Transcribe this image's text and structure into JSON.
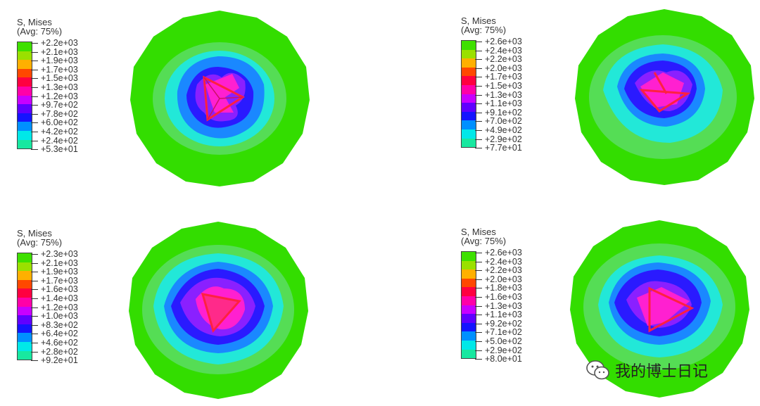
{
  "panels": [
    {
      "title_line1": "S, Mises",
      "title_line2": "(Avg: 75%)",
      "labels": [
        "+2.2e+03",
        "+2.1e+03",
        "+1.9e+03",
        "+1.7e+03",
        "+1.5e+03",
        "+1.3e+03",
        "+1.2e+03",
        "+9.7e+02",
        "+7.8e+02",
        "+6.0e+02",
        "+4.2e+02",
        "+2.4e+02",
        "+5.3e+01"
      ]
    },
    {
      "title_line1": "S, Mises",
      "title_line2": "(Avg: 75%)",
      "labels": [
        "+2.6e+03",
        "+2.4e+03",
        "+2.2e+03",
        "+2.0e+03",
        "+1.7e+03",
        "+1.5e+03",
        "+1.3e+03",
        "+1.1e+03",
        "+9.1e+02",
        "+7.0e+02",
        "+4.9e+02",
        "+2.9e+02",
        "+7.7e+01"
      ]
    },
    {
      "title_line1": "S, Mises",
      "title_line2": "(Avg: 75%)",
      "labels": [
        "+2.3e+03",
        "+2.1e+03",
        "+1.9e+03",
        "+1.7e+03",
        "+1.6e+03",
        "+1.4e+03",
        "+1.2e+03",
        "+1.0e+03",
        "+8.3e+02",
        "+6.4e+02",
        "+4.6e+02",
        "+2.8e+02",
        "+9.2e+01"
      ]
    },
    {
      "title_line1": "S, Mises",
      "title_line2": "(Avg: 75%)",
      "labels": [
        "+2.6e+03",
        "+2.4e+03",
        "+2.2e+03",
        "+2.0e+03",
        "+1.8e+03",
        "+1.6e+03",
        "+1.3e+03",
        "+1.1e+03",
        "+9.2e+02",
        "+7.1e+02",
        "+5.0e+02",
        "+2.9e+02",
        "+8.0e+01"
      ]
    }
  ],
  "colormap": [
    "#3ee000",
    "#9ae000",
    "#ffb000",
    "#ff4800",
    "#ff0040",
    "#ff00a8",
    "#c800ff",
    "#6000ff",
    "#1414ff",
    "#0090ff",
    "#00e8e8",
    "#18e8a0",
    "#30e030"
  ],
  "contour_colors": {
    "outer": "#33dd00",
    "light_green": "#66e07a",
    "cyan": "#22e8d8",
    "blue_light": "#1a88ff",
    "blue": "#2a1aff",
    "violet": "#8a20ff",
    "magenta": "#ff20d0",
    "red": "#ff2040"
  },
  "watermark": {
    "icon": "wechat-icon",
    "text": "我的博士日记"
  }
}
